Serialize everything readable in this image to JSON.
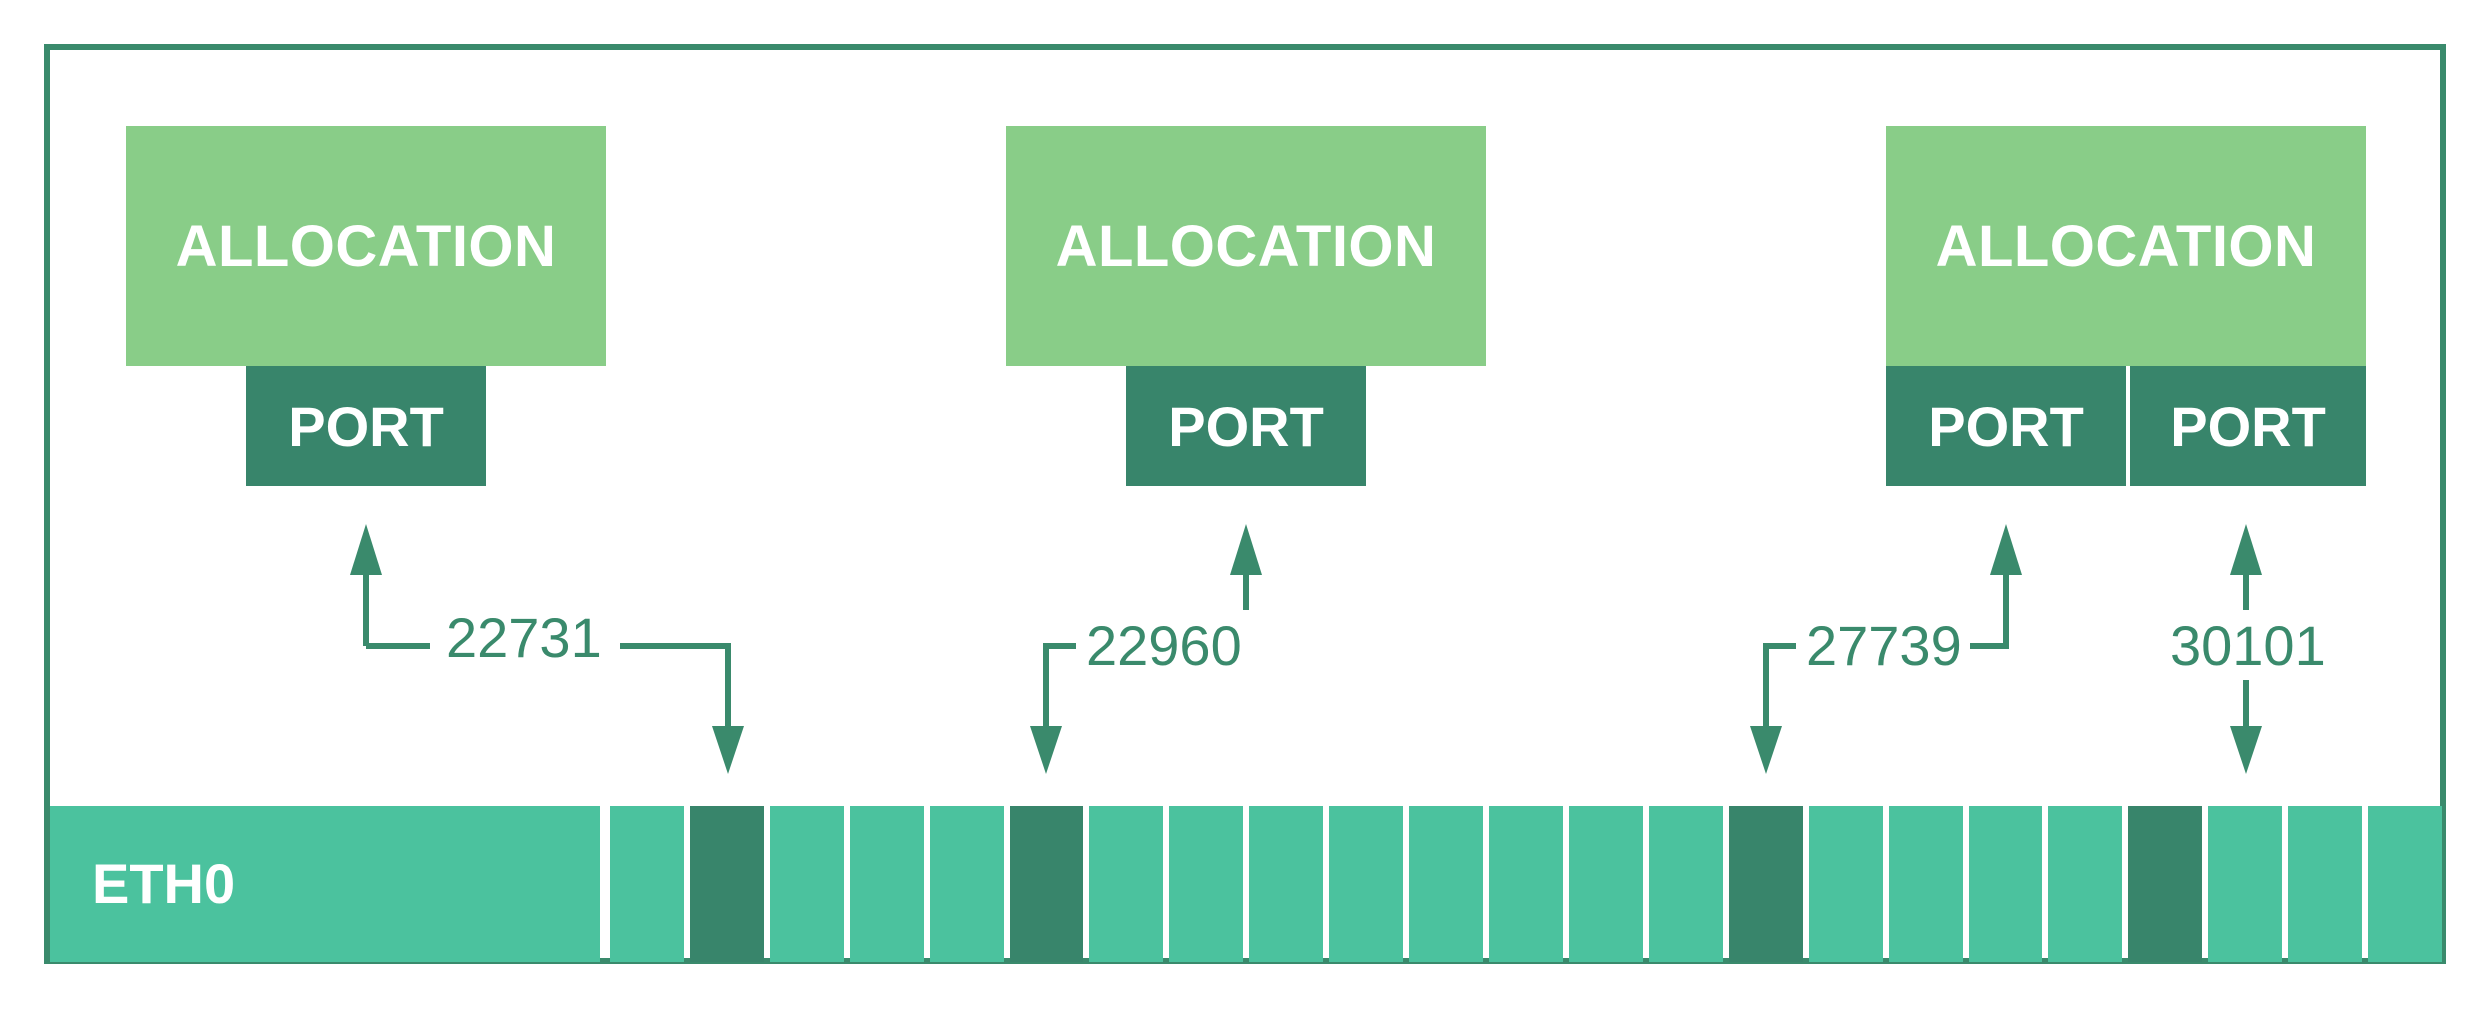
{
  "colors": {
    "frame": "#3a8a6c",
    "allocation": "#89cd88",
    "port": "#38856b",
    "eth": "#4bc29e",
    "slot_used": "#38856b",
    "arrow": "#3a8a6c"
  },
  "allocations": [
    {
      "label": "ALLOCATION",
      "ports": [
        {
          "label": "PORT",
          "number": "22731"
        }
      ]
    },
    {
      "label": "ALLOCATION",
      "ports": [
        {
          "label": "PORT",
          "number": "22960"
        }
      ]
    },
    {
      "label": "ALLOCATION",
      "ports": [
        {
          "label": "PORT",
          "number": "27739"
        },
        {
          "label": "PORT",
          "number": "30101"
        }
      ]
    }
  ],
  "interface": {
    "label": "ETH0",
    "slot_count": 23,
    "used_slots": [
      1,
      5,
      14,
      19
    ]
  }
}
